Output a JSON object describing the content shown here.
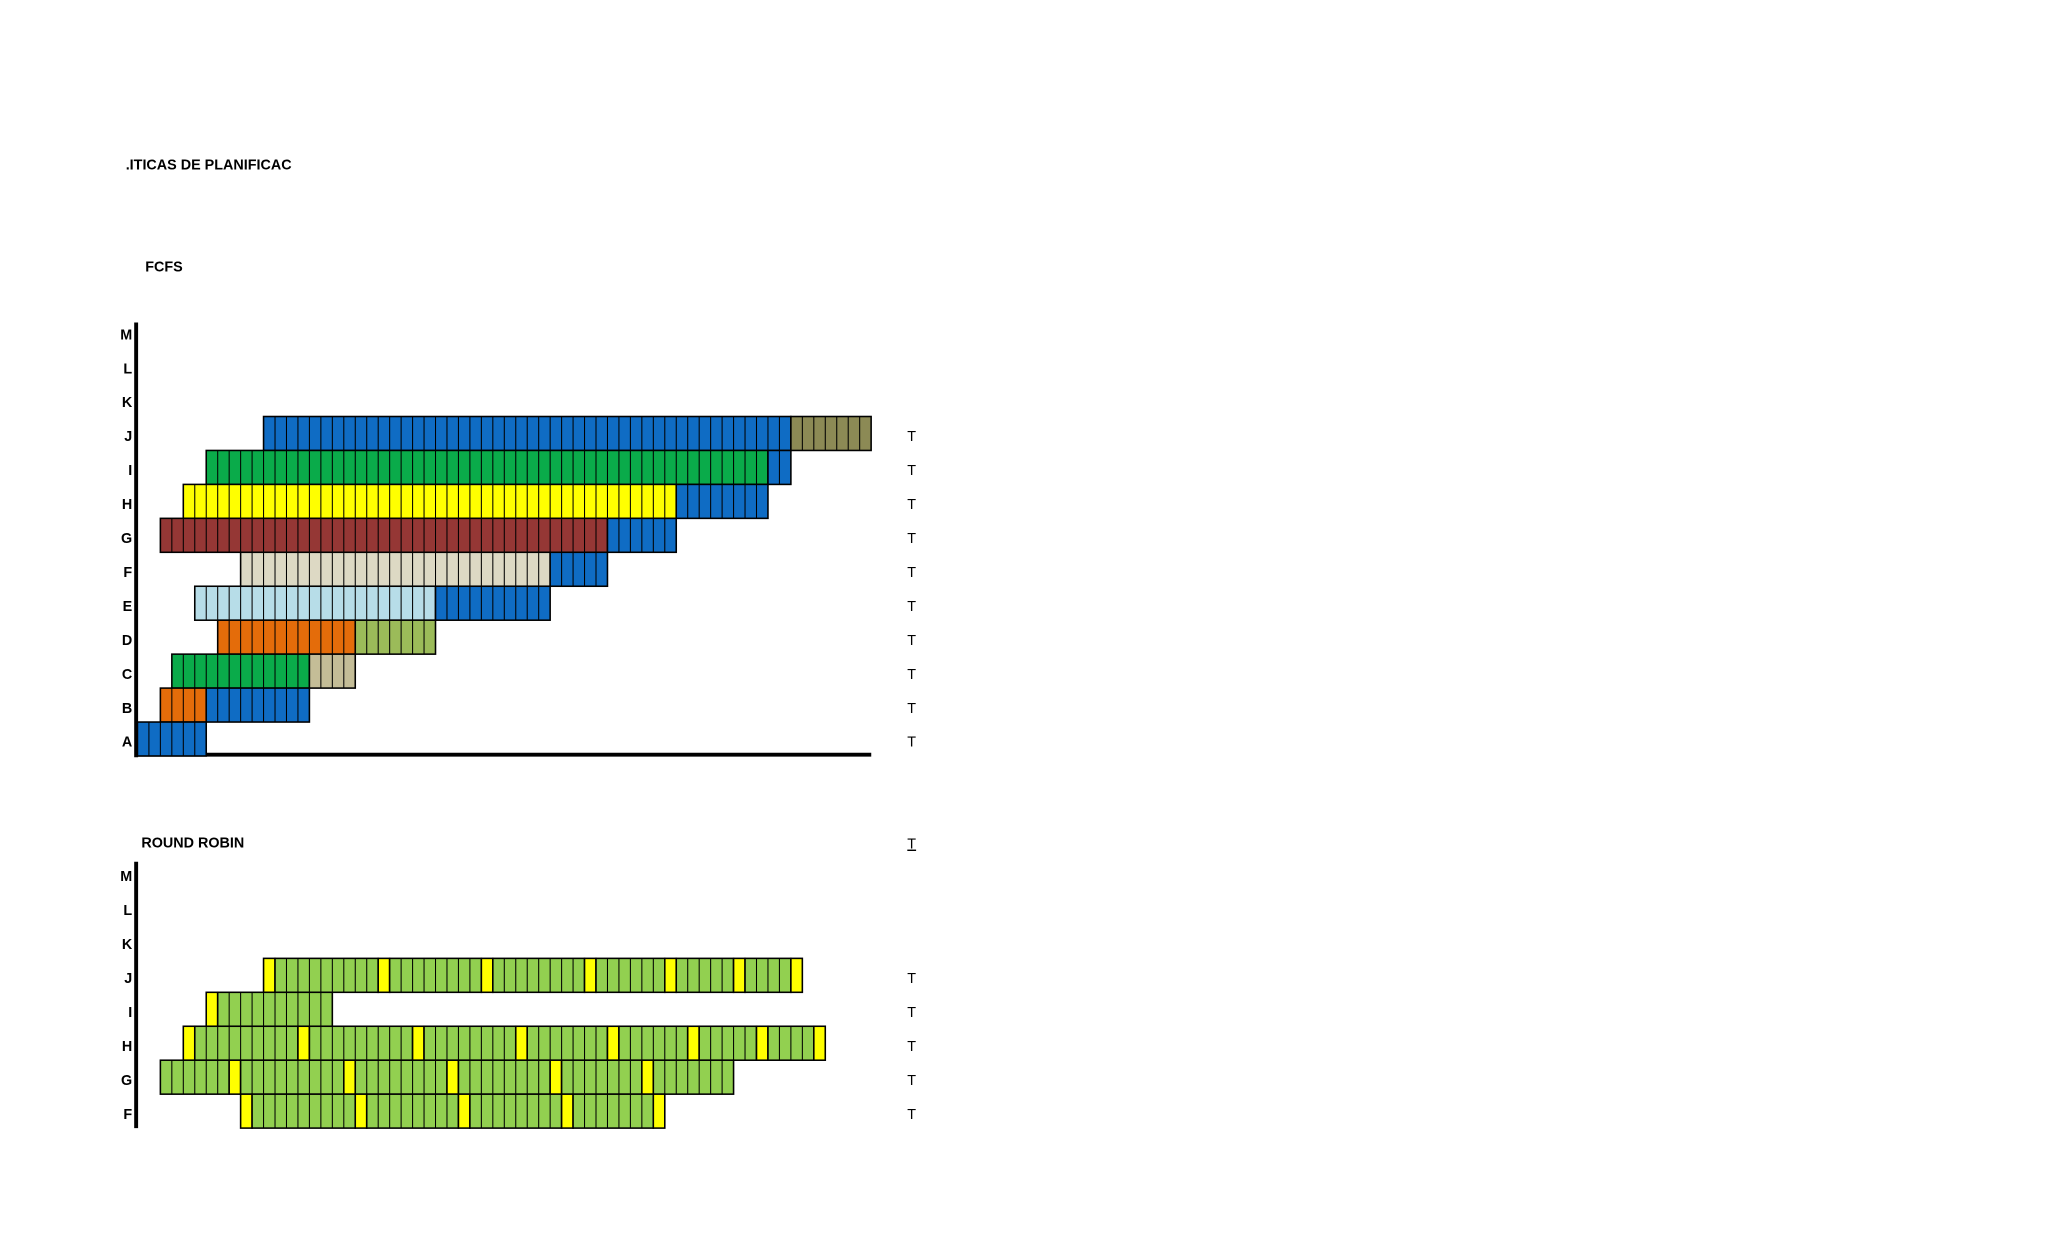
{
  "header": {
    "title": ".ITICAS DE PLANIFICAC"
  },
  "fcfs": {
    "title": "FCFS",
    "rows": [
      {
        "label": "M"
      },
      {
        "label": "L"
      },
      {
        "label": "K"
      },
      {
        "label": "J",
        "end": "T",
        "segments": [
          {
            "start": 11,
            "length": 46,
            "color": "#0f6cc4"
          },
          {
            "start": 57,
            "length": 7,
            "color": "#8c8a55"
          }
        ]
      },
      {
        "label": "I",
        "end": "T",
        "segments": [
          {
            "start": 6,
            "length": 49,
            "color": "#0aab4a"
          },
          {
            "start": 55,
            "length": 2,
            "color": "#0f6cc4"
          }
        ]
      },
      {
        "label": "H",
        "end": "T",
        "segments": [
          {
            "start": 4,
            "length": 43,
            "color": "#ffff00"
          },
          {
            "start": 47,
            "length": 8,
            "color": "#0f6cc4"
          }
        ]
      },
      {
        "label": "G",
        "end": "T",
        "segments": [
          {
            "start": 2,
            "length": 39,
            "color": "#953735"
          },
          {
            "start": 41,
            "length": 6,
            "color": "#0f6cc4"
          }
        ]
      },
      {
        "label": "F",
        "end": "T",
        "segments": [
          {
            "start": 9,
            "length": 27,
            "color": "#ddd9c4"
          },
          {
            "start": 36,
            "length": 5,
            "color": "#0f6cc4"
          }
        ]
      },
      {
        "label": "E",
        "end": "T",
        "segments": [
          {
            "start": 5,
            "length": 21,
            "color": "#b7dde8"
          },
          {
            "start": 26,
            "length": 10,
            "color": "#0f6cc4"
          }
        ]
      },
      {
        "label": "D",
        "end": "T",
        "segments": [
          {
            "start": 7,
            "length": 12,
            "color": "#e46c0a"
          },
          {
            "start": 19,
            "length": 7,
            "color": "#9bbb59"
          }
        ]
      },
      {
        "label": "C",
        "end": "T",
        "segments": [
          {
            "start": 3,
            "length": 12,
            "color": "#0aab4a"
          },
          {
            "start": 15,
            "length": 4,
            "color": "#c4bd97"
          }
        ]
      },
      {
        "label": "B",
        "end": "T",
        "segments": [
          {
            "start": 2,
            "length": 4,
            "color": "#e46c0a"
          },
          {
            "start": 6,
            "length": 9,
            "color": "#0f6cc4"
          }
        ]
      },
      {
        "label": "A",
        "end": "T",
        "segments": [
          {
            "start": 0,
            "length": 6,
            "color": "#0f6cc4"
          }
        ]
      }
    ]
  },
  "round_robin": {
    "title": "ROUND ROBIN",
    "header_mark": "T",
    "rows": [
      {
        "label": "M"
      },
      {
        "label": "L"
      },
      {
        "label": "K"
      },
      {
        "label": "J",
        "end": "T",
        "segments": [
          {
            "start": 11,
            "length": 1,
            "color": "#ffff00"
          },
          {
            "start": 12,
            "length": 9,
            "color": "#92d050"
          },
          {
            "start": 21,
            "length": 1,
            "color": "#ffff00"
          },
          {
            "start": 22,
            "length": 8,
            "color": "#92d050"
          },
          {
            "start": 30,
            "length": 1,
            "color": "#ffff00"
          },
          {
            "start": 31,
            "length": 8,
            "color": "#92d050"
          },
          {
            "start": 39,
            "length": 1,
            "color": "#ffff00"
          },
          {
            "start": 40,
            "length": 6,
            "color": "#92d050"
          },
          {
            "start": 46,
            "length": 1,
            "color": "#ffff00"
          },
          {
            "start": 47,
            "length": 5,
            "color": "#92d050"
          },
          {
            "start": 52,
            "length": 1,
            "color": "#ffff00"
          },
          {
            "start": 53,
            "length": 4,
            "color": "#92d050"
          },
          {
            "start": 57,
            "length": 1,
            "color": "#ffff00"
          }
        ]
      },
      {
        "label": "I",
        "end": "T",
        "segments": [
          {
            "start": 6,
            "length": 1,
            "color": "#ffff00"
          },
          {
            "start": 7,
            "length": 10,
            "color": "#92d050"
          }
        ]
      },
      {
        "label": "H",
        "end": "T",
        "segments": [
          {
            "start": 4,
            "length": 1,
            "color": "#ffff00"
          },
          {
            "start": 5,
            "length": 9,
            "color": "#92d050"
          },
          {
            "start": 14,
            "length": 1,
            "color": "#ffff00"
          },
          {
            "start": 15,
            "length": 9,
            "color": "#92d050"
          },
          {
            "start": 24,
            "length": 1,
            "color": "#ffff00"
          },
          {
            "start": 25,
            "length": 8,
            "color": "#92d050"
          },
          {
            "start": 33,
            "length": 1,
            "color": "#ffff00"
          },
          {
            "start": 34,
            "length": 7,
            "color": "#92d050"
          },
          {
            "start": 41,
            "length": 1,
            "color": "#ffff00"
          },
          {
            "start": 42,
            "length": 6,
            "color": "#92d050"
          },
          {
            "start": 48,
            "length": 1,
            "color": "#ffff00"
          },
          {
            "start": 49,
            "length": 5,
            "color": "#92d050"
          },
          {
            "start": 54,
            "length": 1,
            "color": "#ffff00"
          },
          {
            "start": 55,
            "length": 4,
            "color": "#92d050"
          },
          {
            "start": 59,
            "length": 1,
            "color": "#ffff00"
          }
        ]
      },
      {
        "label": "G",
        "end": "T",
        "segments": [
          {
            "start": 2,
            "length": 6,
            "color": "#92d050"
          },
          {
            "start": 8,
            "length": 1,
            "color": "#ffff00"
          },
          {
            "start": 9,
            "length": 9,
            "color": "#92d050"
          },
          {
            "start": 18,
            "length": 1,
            "color": "#ffff00"
          },
          {
            "start": 19,
            "length": 8,
            "color": "#92d050"
          },
          {
            "start": 27,
            "length": 1,
            "color": "#ffff00"
          },
          {
            "start": 28,
            "length": 8,
            "color": "#92d050"
          },
          {
            "start": 36,
            "length": 1,
            "color": "#ffff00"
          },
          {
            "start": 37,
            "length": 7,
            "color": "#92d050"
          },
          {
            "start": 44,
            "length": 1,
            "color": "#ffff00"
          },
          {
            "start": 45,
            "length": 7,
            "color": "#92d050"
          }
        ]
      },
      {
        "label": "F",
        "end": "T",
        "segments": [
          {
            "start": 9,
            "length": 1,
            "color": "#ffff00"
          },
          {
            "start": 10,
            "length": 9,
            "color": "#92d050"
          },
          {
            "start": 19,
            "length": 1,
            "color": "#ffff00"
          },
          {
            "start": 20,
            "length": 8,
            "color": "#92d050"
          },
          {
            "start": 28,
            "length": 1,
            "color": "#ffff00"
          },
          {
            "start": 29,
            "length": 8,
            "color": "#92d050"
          },
          {
            "start": 37,
            "length": 1,
            "color": "#ffff00"
          },
          {
            "start": 38,
            "length": 7,
            "color": "#92d050"
          },
          {
            "start": 45,
            "length": 1,
            "color": "#ffff00"
          }
        ]
      }
    ]
  }
}
